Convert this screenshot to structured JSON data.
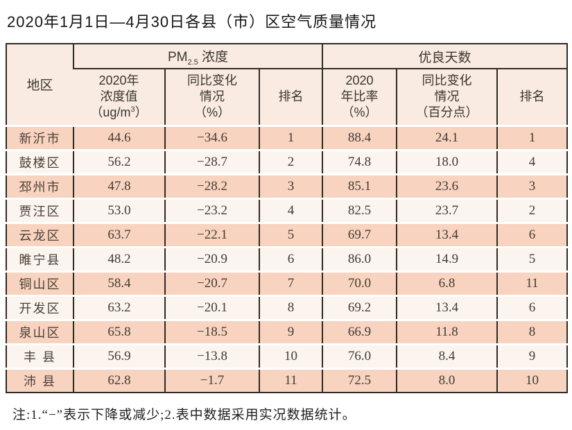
{
  "page": {
    "title": "2020年1月1日—4月30日各县（市）区空气质量情况",
    "footnote": "注:1.“−”表示下降或减少;2.表中数据采用实况数据统计。"
  },
  "colors": {
    "row_odd": "#f8d3bf",
    "row_even": "#fcf4ee",
    "header_bg": "#f9ebe1",
    "border": "#2e2a25"
  },
  "table": {
    "corner_header": "地区",
    "group_pm": {
      "prefix": "PM",
      "sub": "2.5",
      "suffix": " 浓度"
    },
    "group_good": "优良天数",
    "sub": {
      "pm_value_l1": "2020年",
      "pm_value_l2": "浓度值",
      "pm_unit_pre": "（ug/m",
      "pm_unit_sup": "3",
      "pm_unit_post": "）",
      "pm_change_l1": "同比变化",
      "pm_change_l2": "情况",
      "pm_change_l3": "（%）",
      "pm_rank": "排名",
      "good_ratio_l1": "2020",
      "good_ratio_l2": "年比率",
      "good_ratio_l3": "（%）",
      "good_change_l1": "同比变化",
      "good_change_l2": "情况",
      "good_change_l3": "（百分点）",
      "good_rank": "排名"
    },
    "rows": [
      {
        "region": "新沂市",
        "pm_value": "44.6",
        "pm_change": "−34.6",
        "pm_rank": "1",
        "good_ratio": "88.4",
        "good_change": "24.1",
        "good_rank": "1"
      },
      {
        "region": "鼓楼区",
        "pm_value": "56.2",
        "pm_change": "−28.7",
        "pm_rank": "2",
        "good_ratio": "74.8",
        "good_change": "18.0",
        "good_rank": "4"
      },
      {
        "region": "邳州市",
        "pm_value": "47.8",
        "pm_change": "−28.2",
        "pm_rank": "3",
        "good_ratio": "85.1",
        "good_change": "23.6",
        "good_rank": "3"
      },
      {
        "region": "贾汪区",
        "pm_value": "53.0",
        "pm_change": "−23.2",
        "pm_rank": "4",
        "good_ratio": "82.5",
        "good_change": "23.7",
        "good_rank": "2"
      },
      {
        "region": "云龙区",
        "pm_value": "63.7",
        "pm_change": "−22.1",
        "pm_rank": "5",
        "good_ratio": "69.7",
        "good_change": "13.4",
        "good_rank": "6"
      },
      {
        "region": "睢宁县",
        "pm_value": "48.2",
        "pm_change": "−20.9",
        "pm_rank": "6",
        "good_ratio": "86.0",
        "good_change": "14.9",
        "good_rank": "5"
      },
      {
        "region": "铜山区",
        "pm_value": "58.4",
        "pm_change": "−20.7",
        "pm_rank": "7",
        "good_ratio": "70.0",
        "good_change": "6.8",
        "good_rank": "11"
      },
      {
        "region": "开发区",
        "pm_value": "63.2",
        "pm_change": "−20.1",
        "pm_rank": "8",
        "good_ratio": "69.2",
        "good_change": "13.4",
        "good_rank": "6"
      },
      {
        "region": "泉山区",
        "pm_value": "65.8",
        "pm_change": "−18.5",
        "pm_rank": "9",
        "good_ratio": "66.9",
        "good_change": "11.8",
        "good_rank": "8"
      },
      {
        "region": "丰 县",
        "pm_value": "56.9",
        "pm_change": "−13.8",
        "pm_rank": "10",
        "good_ratio": "76.0",
        "good_change": "8.4",
        "good_rank": "9"
      },
      {
        "region": "沛 县",
        "pm_value": "62.8",
        "pm_change": "−1.7",
        "pm_rank": "11",
        "good_ratio": "72.5",
        "good_change": "8.0",
        "good_rank": "10"
      }
    ]
  }
}
